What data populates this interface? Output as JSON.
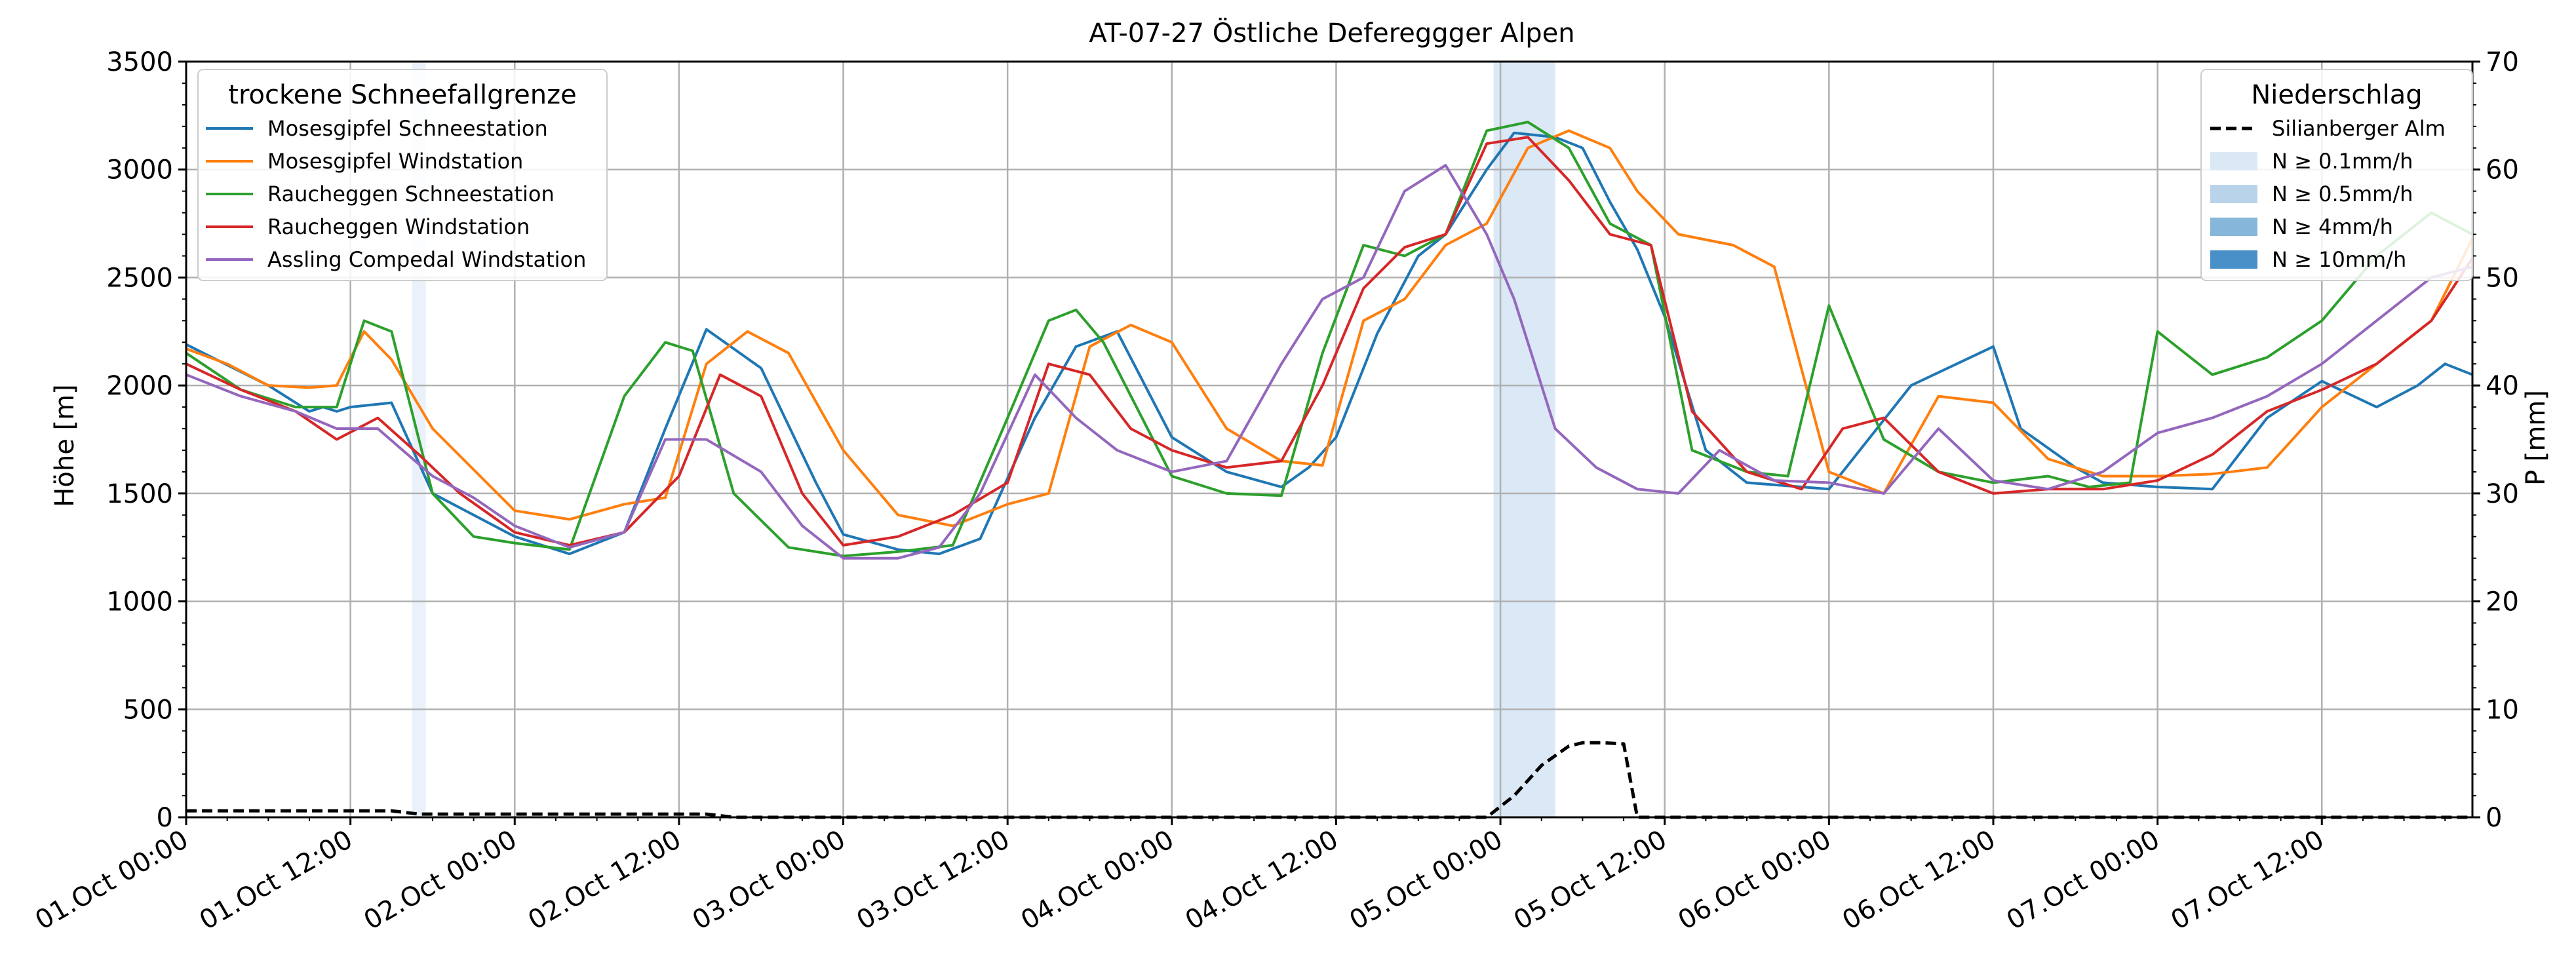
{
  "chart_data": {
    "type": "line",
    "title": "AT-07-27 Östliche Defereggger Alpen",
    "ylabel": "Höhe [m]",
    "y2label": "P [mm]",
    "xlabel": "",
    "ylim": [
      0,
      3500
    ],
    "y2lim": [
      0,
      70
    ],
    "yticks": [
      "0",
      "500",
      "1000",
      "1500",
      "2000",
      "2500",
      "3000",
      "3500"
    ],
    "y2ticks": [
      "0",
      "10",
      "20",
      "30",
      "40",
      "50",
      "60",
      "70"
    ],
    "xlim": [
      "2024-10-01T00:00",
      "2024-10-07T23:00"
    ],
    "xticks": [
      {
        "t": "2024-10-01T00:00",
        "label": "01.Oct 00:00"
      },
      {
        "t": "2024-10-01T12:00",
        "label": "01.Oct 12:00"
      },
      {
        "t": "2024-10-02T00:00",
        "label": "02.Oct 00:00"
      },
      {
        "t": "2024-10-02T12:00",
        "label": "02.Oct 12:00"
      },
      {
        "t": "2024-10-03T00:00",
        "label": "03.Oct 00:00"
      },
      {
        "t": "2024-10-03T12:00",
        "label": "03.Oct 12:00"
      },
      {
        "t": "2024-10-04T00:00",
        "label": "04.Oct 00:00"
      },
      {
        "t": "2024-10-04T12:00",
        "label": "04.Oct 12:00"
      },
      {
        "t": "2024-10-05T00:00",
        "label": "05.Oct 00:00"
      },
      {
        "t": "2024-10-05T12:00",
        "label": "05.Oct 12:00"
      },
      {
        "t": "2024-10-06T00:00",
        "label": "06.Oct 00:00"
      },
      {
        "t": "2024-10-06T12:00",
        "label": "06.Oct 12:00"
      },
      {
        "t": "2024-10-07T00:00",
        "label": "07.Oct 00:00"
      },
      {
        "t": "2024-10-07T12:00",
        "label": "07.Oct 12:00"
      }
    ],
    "grid": true,
    "legend_left": {
      "title": "trockene Schneefallgrenze",
      "placement": "top-left"
    },
    "legend_right": {
      "title": "Niederschlag",
      "placement": "top-right",
      "entries": [
        {
          "label": "Silianberger Alm",
          "kind": "dashed-line",
          "color": "#000000"
        },
        {
          "label": "N ≥ 0.1mm/h",
          "kind": "patch",
          "color": "#dbe8f5"
        },
        {
          "label": "N ≥ 0.5mm/h",
          "kind": "patch",
          "color": "#b9d4ea"
        },
        {
          "label": "N ≥ 4mm/h",
          "kind": "patch",
          "color": "#86b7db"
        },
        {
          "label": "N ≥ 10mm/h",
          "kind": "patch",
          "color": "#4a90c8"
        }
      ]
    },
    "shaded_regions": [
      {
        "start": "2024-10-01T16:30",
        "end": "2024-10-01T17:30",
        "class": "N ≥ 0.1mm/h",
        "color": "#eaf1fa"
      },
      {
        "start": "2024-10-04T23:30",
        "end": "2024-10-05T04:00",
        "class": "N ≥ 0.1mm/h",
        "color": "#dbe8f5"
      }
    ],
    "series": [
      {
        "name": "Mosesgipfel Schneestation",
        "color": "#1f77b4",
        "x": [
          "2024-10-01T00:00",
          "2024-10-01T06:00",
          "2024-10-01T09:00",
          "2024-10-01T10:00",
          "2024-10-01T11:00",
          "2024-10-01T12:00",
          "2024-10-01T15:00",
          "2024-10-01T18:00",
          "2024-10-02T00:00",
          "2024-10-02T04:00",
          "2024-10-02T08:00",
          "2024-10-02T11:00",
          "2024-10-02T14:00",
          "2024-10-02T18:00",
          "2024-10-02T22:00",
          "2024-10-03T00:00",
          "2024-10-03T04:00",
          "2024-10-03T07:00",
          "2024-10-03T10:00",
          "2024-10-03T14:00",
          "2024-10-03T17:00",
          "2024-10-03T20:00",
          "2024-10-04T00:00",
          "2024-10-04T04:00",
          "2024-10-04T08:00",
          "2024-10-04T10:00",
          "2024-10-04T12:00",
          "2024-10-04T15:00",
          "2024-10-04T18:00",
          "2024-10-04T20:00",
          "2024-10-04T23:00",
          "2024-10-05T01:00",
          "2024-10-05T04:00",
          "2024-10-05T06:00",
          "2024-10-05T08:00",
          "2024-10-05T10:00",
          "2024-10-05T12:00",
          "2024-10-05T15:00",
          "2024-10-05T18:00",
          "2024-10-06T00:00",
          "2024-10-06T06:00",
          "2024-10-06T12:00",
          "2024-10-06T14:00",
          "2024-10-06T18:00",
          "2024-10-06T20:00",
          "2024-10-07T00:00",
          "2024-10-07T04:00",
          "2024-10-07T08:00",
          "2024-10-07T12:00",
          "2024-10-07T16:00",
          "2024-10-07T19:00",
          "2024-10-07T21:00",
          "2024-10-07T23:00"
        ],
        "y": [
          2190,
          2000,
          1880,
          1900,
          1880,
          1900,
          1920,
          1500,
          1300,
          1220,
          1320,
          1800,
          2260,
          2080,
          1550,
          1310,
          1240,
          1220,
          1290,
          1850,
          2180,
          2250,
          1760,
          1600,
          1530,
          1620,
          1760,
          2240,
          2600,
          2700,
          3000,
          3170,
          3150,
          3100,
          2850,
          2630,
          2320,
          1700,
          1550,
          1520,
          2000,
          2180,
          1800,
          1620,
          1550,
          1530,
          1520,
          1850,
          2020,
          1900,
          2000,
          2100,
          2050
        ]
      },
      {
        "name": "Mosesgipfel Windstation",
        "color": "#ff7f0e",
        "x": [
          "2024-10-01T00:00",
          "2024-10-01T03:00",
          "2024-10-01T06:00",
          "2024-10-01T09:00",
          "2024-10-01T11:00",
          "2024-10-01T13:00",
          "2024-10-01T15:00",
          "2024-10-01T18:00",
          "2024-10-02T00:00",
          "2024-10-02T04:00",
          "2024-10-02T08:00",
          "2024-10-02T11:00",
          "2024-10-02T14:00",
          "2024-10-02T17:00",
          "2024-10-02T20:00",
          "2024-10-03T00:00",
          "2024-10-03T04:00",
          "2024-10-03T08:00",
          "2024-10-03T12:00",
          "2024-10-03T15:00",
          "2024-10-03T18:00",
          "2024-10-03T21:00",
          "2024-10-04T00:00",
          "2024-10-04T04:00",
          "2024-10-04T08:00",
          "2024-10-04T11:00",
          "2024-10-04T14:00",
          "2024-10-04T17:00",
          "2024-10-04T20:00",
          "2024-10-04T23:00",
          "2024-10-05T02:00",
          "2024-10-05T05:00",
          "2024-10-05T08:00",
          "2024-10-05T10:00",
          "2024-10-05T13:00",
          "2024-10-05T17:00",
          "2024-10-05T20:00",
          "2024-10-06T00:00",
          "2024-10-06T04:00",
          "2024-10-06T08:00",
          "2024-10-06T12:00",
          "2024-10-06T16:00",
          "2024-10-06T20:00",
          "2024-10-07T00:00",
          "2024-10-07T04:00",
          "2024-10-07T08:00",
          "2024-10-07T12:00",
          "2024-10-07T16:00",
          "2024-10-07T20:00",
          "2024-10-07T23:00"
        ],
        "y": [
          2170,
          2100,
          2000,
          1990,
          2000,
          2250,
          2120,
          1800,
          1420,
          1380,
          1450,
          1480,
          2100,
          2250,
          2150,
          1700,
          1400,
          1350,
          1450,
          1500,
          2180,
          2280,
          2200,
          1800,
          1650,
          1630,
          2300,
          2400,
          2650,
          2750,
          3100,
          3180,
          3100,
          2900,
          2700,
          2650,
          2550,
          1600,
          1500,
          1950,
          1920,
          1660,
          1580,
          1580,
          1590,
          1620,
          1900,
          2100,
          2300,
          2680
        ]
      },
      {
        "name": "Raucheggen Schneestation",
        "color": "#2ca02c",
        "x": [
          "2024-10-01T00:00",
          "2024-10-01T04:00",
          "2024-10-01T08:00",
          "2024-10-01T11:00",
          "2024-10-01T13:00",
          "2024-10-01T15:00",
          "2024-10-01T18:00",
          "2024-10-01T21:00",
          "2024-10-02T00:00",
          "2024-10-02T04:00",
          "2024-10-02T08:00",
          "2024-10-02T11:00",
          "2024-10-02T13:00",
          "2024-10-02T16:00",
          "2024-10-02T20:00",
          "2024-10-03T00:00",
          "2024-10-03T04:00",
          "2024-10-03T08:00",
          "2024-10-03T12:00",
          "2024-10-03T15:00",
          "2024-10-03T17:00",
          "2024-10-03T19:00",
          "2024-10-04T00:00",
          "2024-10-04T04:00",
          "2024-10-04T08:00",
          "2024-10-04T11:00",
          "2024-10-04T14:00",
          "2024-10-04T17:00",
          "2024-10-04T20:00",
          "2024-10-04T23:00",
          "2024-10-05T02:00",
          "2024-10-05T05:00",
          "2024-10-05T08:00",
          "2024-10-05T11:00",
          "2024-10-05T14:00",
          "2024-10-05T18:00",
          "2024-10-05T21:00",
          "2024-10-06T00:00",
          "2024-10-06T04:00",
          "2024-10-06T08:00",
          "2024-10-06T12:00",
          "2024-10-06T16:00",
          "2024-10-06T19:00",
          "2024-10-06T22:00",
          "2024-10-07T00:00",
          "2024-10-07T04:00",
          "2024-10-07T08:00",
          "2024-10-07T12:00",
          "2024-10-07T16:00",
          "2024-10-07T20:00",
          "2024-10-07T23:00"
        ],
        "y": [
          2150,
          1980,
          1900,
          1900,
          2300,
          2250,
          1500,
          1300,
          1270,
          1240,
          1950,
          2200,
          2160,
          1500,
          1250,
          1210,
          1230,
          1260,
          1850,
          2300,
          2350,
          2200,
          1580,
          1500,
          1490,
          2150,
          2650,
          2600,
          2700,
          3180,
          3220,
          3100,
          2750,
          2650,
          1700,
          1600,
          1580,
          2370,
          1750,
          1600,
          1550,
          1580,
          1530,
          1550,
          2250,
          2050,
          2130,
          2300,
          2600,
          2800,
          2700
        ]
      },
      {
        "name": "Raucheggen Windstation",
        "color": "#d62728",
        "x": [
          "2024-10-01T00:00",
          "2024-10-01T04:00",
          "2024-10-01T08:00",
          "2024-10-01T11:00",
          "2024-10-01T14:00",
          "2024-10-01T17:00",
          "2024-10-01T20:00",
          "2024-10-02T00:00",
          "2024-10-02T04:00",
          "2024-10-02T08:00",
          "2024-10-02T12:00",
          "2024-10-02T15:00",
          "2024-10-02T18:00",
          "2024-10-02T21:00",
          "2024-10-03T00:00",
          "2024-10-03T04:00",
          "2024-10-03T08:00",
          "2024-10-03T12:00",
          "2024-10-03T15:00",
          "2024-10-03T18:00",
          "2024-10-03T21:00",
          "2024-10-04T00:00",
          "2024-10-04T04:00",
          "2024-10-04T08:00",
          "2024-10-04T11:00",
          "2024-10-04T14:00",
          "2024-10-04T17:00",
          "2024-10-04T20:00",
          "2024-10-04T23:00",
          "2024-10-05T02:00",
          "2024-10-05T05:00",
          "2024-10-05T08:00",
          "2024-10-05T11:00",
          "2024-10-05T14:00",
          "2024-10-05T18:00",
          "2024-10-05T22:00",
          "2024-10-06T01:00",
          "2024-10-06T04:00",
          "2024-10-06T08:00",
          "2024-10-06T12:00",
          "2024-10-06T16:00",
          "2024-10-06T20:00",
          "2024-10-07T00:00",
          "2024-10-07T04:00",
          "2024-10-07T08:00",
          "2024-10-07T12:00",
          "2024-10-07T16:00",
          "2024-10-07T20:00",
          "2024-10-07T23:00"
        ],
        "y": [
          2100,
          1980,
          1880,
          1750,
          1850,
          1680,
          1500,
          1320,
          1260,
          1320,
          1580,
          2050,
          1950,
          1500,
          1260,
          1300,
          1400,
          1550,
          2100,
          2050,
          1800,
          1700,
          1620,
          1650,
          2000,
          2450,
          2640,
          2700,
          3120,
          3150,
          2950,
          2700,
          2650,
          1880,
          1600,
          1520,
          1800,
          1850,
          1600,
          1500,
          1520,
          1520,
          1560,
          1680,
          1880,
          1980,
          2100,
          2300,
          2590
        ]
      },
      {
        "name": "Assling Compedal Windstation",
        "color": "#9467bd",
        "x": [
          "2024-10-01T00:00",
          "2024-10-01T04:00",
          "2024-10-01T08:00",
          "2024-10-01T11:00",
          "2024-10-01T14:00",
          "2024-10-01T18:00",
          "2024-10-01T21:00",
          "2024-10-02T00:00",
          "2024-10-02T04:00",
          "2024-10-02T08:00",
          "2024-10-02T11:00",
          "2024-10-02T14:00",
          "2024-10-02T18:00",
          "2024-10-02T21:00",
          "2024-10-03T00:00",
          "2024-10-03T04:00",
          "2024-10-03T07:00",
          "2024-10-03T10:00",
          "2024-10-03T14:00",
          "2024-10-03T17:00",
          "2024-10-03T20:00",
          "2024-10-04T00:00",
          "2024-10-04T04:00",
          "2024-10-04T08:00",
          "2024-10-04T11:00",
          "2024-10-04T14:00",
          "2024-10-04T17:00",
          "2024-10-04T20:00",
          "2024-10-04T23:00",
          "2024-10-05T01:00",
          "2024-10-05T04:00",
          "2024-10-05T07:00",
          "2024-10-05T10:00",
          "2024-10-05T13:00",
          "2024-10-05T16:00",
          "2024-10-05T20:00",
          "2024-10-06T00:00",
          "2024-10-06T04:00",
          "2024-10-06T08:00",
          "2024-10-06T12:00",
          "2024-10-06T16:00",
          "2024-10-06T20:00",
          "2024-10-07T00:00",
          "2024-10-07T04:00",
          "2024-10-07T08:00",
          "2024-10-07T12:00",
          "2024-10-07T16:00",
          "2024-10-07T20:00",
          "2024-10-07T23:00"
        ],
        "y": [
          2050,
          1950,
          1880,
          1800,
          1800,
          1580,
          1480,
          1350,
          1250,
          1320,
          1750,
          1750,
          1600,
          1350,
          1200,
          1200,
          1250,
          1500,
          2050,
          1850,
          1700,
          1600,
          1650,
          2100,
          2400,
          2500,
          2900,
          3020,
          2700,
          2400,
          1800,
          1620,
          1520,
          1500,
          1700,
          1560,
          1550,
          1500,
          1800,
          1560,
          1520,
          1600,
          1780,
          1850,
          1950,
          2100,
          2300,
          2500,
          2550
        ]
      },
      {
        "name": "Silianberger Alm",
        "axis": "right",
        "style": "dashed",
        "color": "#000000",
        "x": [
          "2024-10-01T00:00",
          "2024-10-01T15:00",
          "2024-10-01T17:00",
          "2024-10-02T14:00",
          "2024-10-02T16:00",
          "2024-10-04T23:00",
          "2024-10-05T01:00",
          "2024-10-05T03:00",
          "2024-10-05T05:00",
          "2024-10-05T06:00",
          "2024-10-05T07:30",
          "2024-10-05T09:00",
          "2024-10-05T10:00",
          "2024-10-07T23:00"
        ],
        "y": [
          0.6,
          0.6,
          0.3,
          0.3,
          0.0,
          0.0,
          2.0,
          4.8,
          6.6,
          6.9,
          6.9,
          6.8,
          0.0,
          0.0
        ]
      }
    ]
  }
}
